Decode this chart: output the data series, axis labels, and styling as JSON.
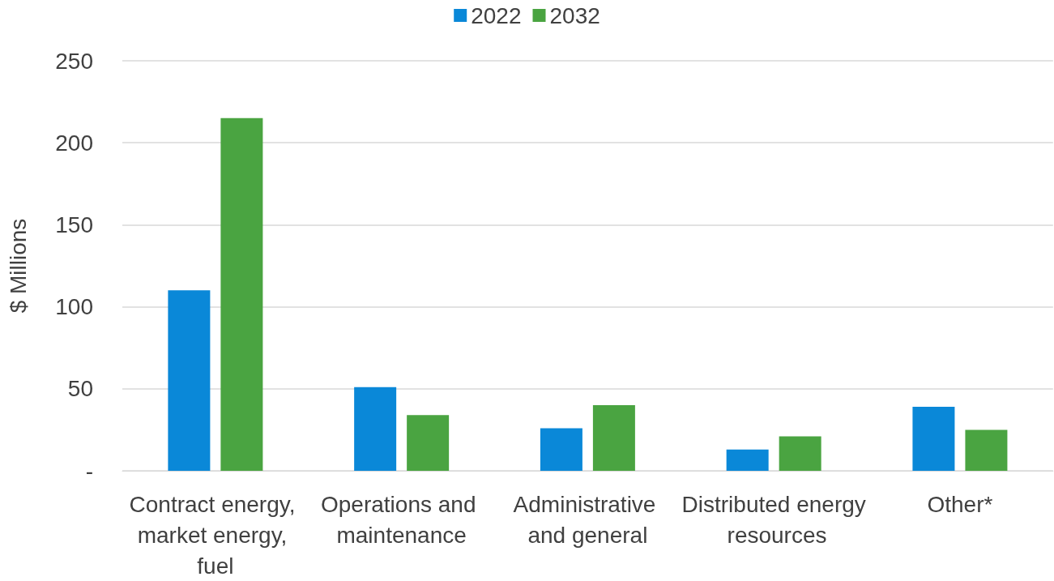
{
  "chart_data": {
    "type": "bar",
    "ylabel": "$ Millions",
    "categories": [
      "Contract energy, market energy, fuel",
      "Operations and maintenance",
      "Administrative and general",
      "Distributed energy resources",
      "Other*"
    ],
    "series": [
      {
        "name": "2022",
        "color": "#0a88d8",
        "values": [
          110,
          51,
          26,
          13,
          39
        ]
      },
      {
        "name": "2032",
        "color": "#4aa441",
        "values": [
          215,
          34,
          40,
          21,
          25
        ]
      }
    ],
    "ylim": [
      0,
      250
    ],
    "yticks": [
      {
        "value": 0,
        "label": "-"
      },
      50,
      100,
      150,
      200,
      250
    ],
    "grid": "y",
    "legend": "top"
  }
}
